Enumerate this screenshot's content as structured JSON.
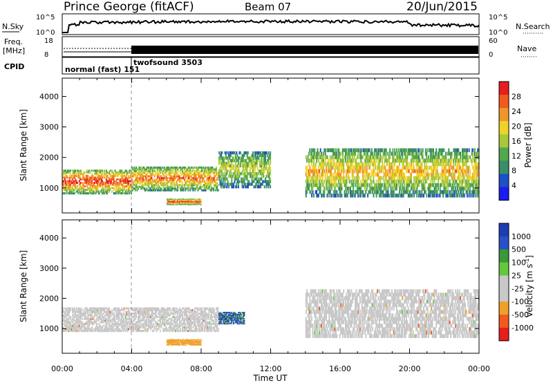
{
  "header": {
    "title": "Prince George (fitACF)",
    "beam": "Beam 07",
    "date": "20/Jun/2015"
  },
  "nsky_panel": {
    "left_label": "N.Sky",
    "right_label": "N.Search",
    "y_tick_top": "10^5",
    "y_tick_bottom": "10^0",
    "right_tick_top": "10^5",
    "right_tick_bottom": "10^0"
  },
  "freq_panel": {
    "left_label_1": "Freq.",
    "left_label_2": "[MHz]",
    "right_label": "Nave",
    "y_tick_top": "18",
    "y_tick_bottom": "8",
    "right_tick_top": "60",
    "right_tick_bottom": "0"
  },
  "cpid_panel": {
    "left_label": "CPID",
    "segments": [
      {
        "label": "normal (fast) 151",
        "start_hour": 0,
        "end_hour": 4
      },
      {
        "label": "twofsound 3503",
        "start_hour": 4,
        "end_hour": 24
      }
    ]
  },
  "colors": {
    "power": [
      "#1c1cf0",
      "#1e50c8",
      "#3b8c6a",
      "#52a84e",
      "#a8c83c",
      "#f0d228",
      "#f09628",
      "#f05a1e",
      "#e61e1e"
    ],
    "velocity": [
      "#e61e1e",
      "#f05a1e",
      "#f0a028",
      "#c8c8c8",
      "#c8c8c8",
      "#64c83c",
      "#3c963c",
      "#2850c8",
      "#1e3cb4"
    ]
  },
  "chart_data": [
    {
      "type": "heatmap",
      "title": "",
      "xlabel": "",
      "ylabel": "Slant Range [km]",
      "colorbar_label": "Power [dB]",
      "colorbar_ticks": [
        "4",
        "8",
        "12",
        "16",
        "20",
        "24",
        "28"
      ],
      "xlim": [
        0,
        24
      ],
      "ylim": [
        180,
        4600
      ],
      "y_ticks": [
        1000,
        2000,
        3000,
        4000
      ],
      "bands": [
        {
          "start_hour": 0,
          "end_hour": 4,
          "range_low": 800,
          "range_high": 1600,
          "peak_db": 28
        },
        {
          "start_hour": 4,
          "end_hour": 9,
          "range_low": 900,
          "range_high": 1700,
          "peak_db": 24
        },
        {
          "start_hour": 6,
          "end_hour": 8,
          "range_low": 450,
          "range_high": 650,
          "peak_db": 28
        },
        {
          "start_hour": 9,
          "end_hour": 12,
          "range_low": 1000,
          "range_high": 2200,
          "peak_db": 16
        },
        {
          "start_hour": 14,
          "end_hour": 24,
          "range_low": 700,
          "range_high": 2300,
          "peak_db": 20
        }
      ]
    },
    {
      "type": "heatmap",
      "title": "",
      "xlabel": "Time UT",
      "ylabel": "Slant Range [km]",
      "colorbar_label": "Velocity [m s^-1]",
      "colorbar_ticks": [
        "-1000",
        "-500",
        "-100",
        "-25",
        "25",
        "100",
        "500",
        "1000"
      ],
      "xlim": [
        0,
        24
      ],
      "x_ticks": [
        "00:00",
        "04:00",
        "08:00",
        "12:00",
        "16:00",
        "20:00",
        "00:00"
      ],
      "ylim": [
        180,
        4600
      ],
      "y_ticks": [
        1000,
        2000,
        3000,
        4000
      ],
      "bands": [
        {
          "start_hour": 0,
          "end_hour": 9,
          "range_low": 900,
          "range_high": 1700,
          "velocity": 0
        },
        {
          "start_hour": 9,
          "end_hour": 10.5,
          "range_low": 1150,
          "range_high": 1550,
          "velocity": 700
        },
        {
          "start_hour": 6,
          "end_hour": 8,
          "range_low": 450,
          "range_high": 650,
          "velocity": -150
        },
        {
          "start_hour": 14,
          "end_hour": 24,
          "range_low": 700,
          "range_high": 2300,
          "velocity": 0
        }
      ]
    }
  ]
}
